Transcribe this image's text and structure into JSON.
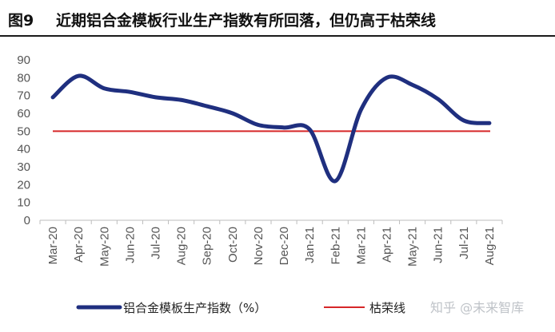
{
  "figure": {
    "number": "图9",
    "title": "近期铝合金模板行业生产指数有所回落，但仍高于枯荣线"
  },
  "chart_data": {
    "type": "line",
    "title": "近期铝合金模板行业生产指数有所回落，但仍高于枯荣线",
    "xlabel": "",
    "ylabel": "",
    "ylim": [
      0,
      90
    ],
    "yticks": [
      0,
      10,
      20,
      30,
      40,
      50,
      60,
      70,
      80,
      90
    ],
    "categories": [
      "Mar-20",
      "Apr-20",
      "May-20",
      "Jun-20",
      "Jul-20",
      "Aug-20",
      "Sep-20",
      "Oct-20",
      "Nov-20",
      "Dec-20",
      "Jan-21",
      "Feb-21",
      "Mar-21",
      "Apr-21",
      "May-21",
      "Jun-21",
      "Jul-21",
      "Aug-21"
    ],
    "series": [
      {
        "name": "铝合金模板生产指数（%）",
        "color": "#1f2f7f",
        "values": [
          69,
          81,
          74,
          72,
          69,
          67.5,
          64,
          60,
          53.5,
          52,
          51,
          22,
          62,
          80,
          76,
          68,
          56,
          54.5
        ]
      },
      {
        "name": "枯荣线",
        "color": "#d62728",
        "values": [
          50,
          50,
          50,
          50,
          50,
          50,
          50,
          50,
          50,
          50,
          50,
          50,
          50,
          50,
          50,
          50,
          50,
          50
        ]
      }
    ],
    "grid": false,
    "legend_position": "bottom"
  },
  "watermark": "知乎 @未来智库"
}
